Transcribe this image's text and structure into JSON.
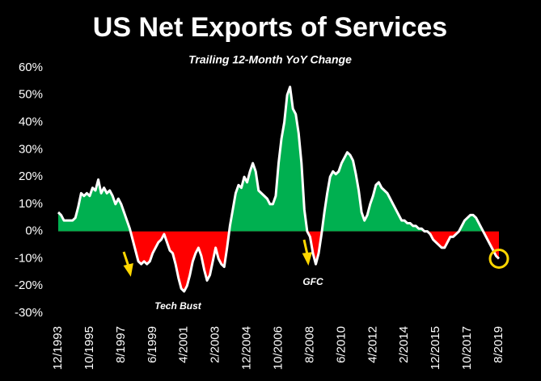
{
  "chart_data": {
    "type": "area",
    "title": "US Net Exports of Services",
    "subtitle": "Trailing 12-Month YoY Change",
    "annotations": [
      "Tech Bust",
      "GFC"
    ],
    "categories": [
      "12/1993",
      null,
      null,
      null,
      null,
      null,
      null,
      null,
      null,
      null,
      null,
      "10/1995",
      null,
      null,
      null,
      null,
      null,
      null,
      null,
      null,
      null,
      null,
      "8/1997",
      null,
      null,
      null,
      null,
      null,
      null,
      null,
      null,
      null,
      null,
      "6/1999",
      null,
      null,
      null,
      null,
      null,
      null,
      null,
      null,
      null,
      null,
      "4/2001",
      null,
      null,
      null,
      null,
      null,
      null,
      null,
      null,
      null,
      null,
      "2/2003",
      null,
      null,
      null,
      null,
      null,
      null,
      null,
      null,
      null,
      null,
      "12/2004",
      null,
      null,
      null,
      null,
      null,
      null,
      null,
      null,
      null,
      null,
      "10/2006",
      null,
      null,
      null,
      null,
      null,
      null,
      null,
      null,
      null,
      null,
      "8/2008",
      null,
      null,
      null,
      null,
      null,
      null,
      null,
      null,
      null,
      null,
      "6/2010",
      null,
      null,
      null,
      null,
      null,
      null,
      null,
      null,
      null,
      null,
      "4/2012",
      null,
      null,
      null,
      null,
      null,
      null,
      null,
      null,
      null,
      null,
      "2/2014",
      null,
      null,
      null,
      null,
      null,
      null,
      null,
      null,
      null,
      null,
      "12/2015",
      null,
      null,
      null,
      null,
      null,
      null,
      null,
      null,
      null,
      null,
      "10/2017",
      null,
      null,
      null,
      null,
      null,
      null,
      null,
      null,
      null,
      null,
      "8/2019"
    ],
    "series": [
      {
        "color": "#ffffff",
        "values": [
          7,
          6,
          4,
          4,
          4,
          4,
          5,
          9,
          14,
          13,
          14,
          13,
          16,
          15,
          19,
          14,
          16,
          14,
          15,
          13,
          10,
          12,
          10,
          7,
          4,
          1,
          -3,
          -7,
          -11,
          -12,
          -11,
          -12,
          -11,
          -8,
          -6,
          -4,
          -3,
          -1,
          -4,
          -7,
          -8,
          -12,
          -17,
          -21,
          -22,
          -20,
          -16,
          -11,
          -8,
          -6,
          -9,
          -14,
          -18,
          -16,
          -11,
          -6,
          -10,
          -12,
          -13,
          -6,
          2,
          8,
          14,
          17,
          16,
          20,
          18,
          22,
          25,
          22,
          15,
          14,
          13,
          12,
          10,
          10,
          13,
          25,
          34,
          40,
          50,
          53,
          45,
          43,
          36,
          25,
          8,
          0,
          -2,
          -8,
          -12,
          -8,
          -1,
          7,
          14,
          20,
          22,
          21,
          22,
          25,
          27,
          29,
          28,
          26,
          21,
          15,
          7,
          4,
          6,
          10,
          13,
          17,
          18,
          16,
          15,
          14,
          12,
          10,
          8,
          6,
          4,
          4,
          3,
          3,
          2,
          2,
          1,
          1,
          0,
          0,
          -1,
          -3,
          -4,
          -5,
          -6,
          -6,
          -4,
          -2,
          -2,
          -1,
          0,
          2,
          4,
          5,
          6,
          6,
          5,
          3,
          1,
          -1,
          -3,
          -5,
          -7,
          -9,
          -10
        ]
      }
    ],
    "positive_color": "#00b050",
    "negative_color": "#ff0000",
    "ylim": [
      -30,
      60
    ],
    "yticks": [
      {
        "value": 60,
        "label": "60%"
      },
      {
        "value": 50,
        "label": "50%"
      },
      {
        "value": 40,
        "label": "40%"
      },
      {
        "value": 30,
        "label": "30%"
      },
      {
        "value": 20,
        "label": "20%"
      },
      {
        "value": 10,
        "label": "10%"
      },
      {
        "value": 0,
        "label": "0%"
      },
      {
        "value": -10,
        "label": "-10%"
      },
      {
        "value": -20,
        "label": "-20%"
      },
      {
        "value": -30,
        "label": "-30%"
      }
    ]
  }
}
